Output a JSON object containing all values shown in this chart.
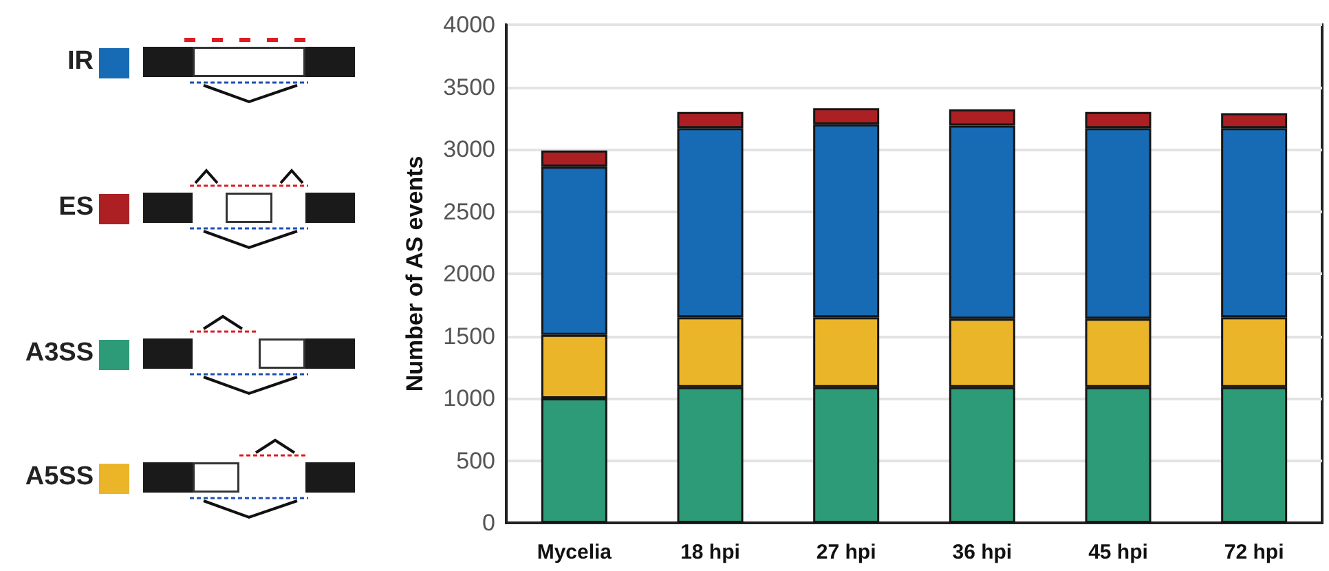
{
  "chart_data": {
    "type": "bar",
    "stacked": true,
    "ylabel": "Number of AS events",
    "categories": [
      "Mycelia",
      "18 hpi",
      "27 hpi",
      "36 hpi",
      "45 hpi",
      "72 hpi"
    ],
    "series": [
      {
        "name": "A3SS",
        "color": "#2e9b78",
        "values": [
          1000,
          1090,
          1090,
          1090,
          1090,
          1090
        ]
      },
      {
        "name": "A5SS",
        "color": "#ebb52a",
        "values": [
          510,
          560,
          560,
          550,
          550,
          560
        ]
      },
      {
        "name": "IR",
        "color": "#166bb4",
        "values": [
          1350,
          1520,
          1550,
          1550,
          1530,
          1520
        ]
      },
      {
        "name": "ES",
        "color": "#ac2024",
        "values": [
          130,
          130,
          130,
          130,
          130,
          120
        ]
      }
    ],
    "ylim": [
      0,
      4000
    ],
    "yticks": [
      0,
      500,
      1000,
      1500,
      2000,
      2500,
      3000,
      3500,
      4000
    ],
    "grid": "y",
    "legend": "left"
  }
}
